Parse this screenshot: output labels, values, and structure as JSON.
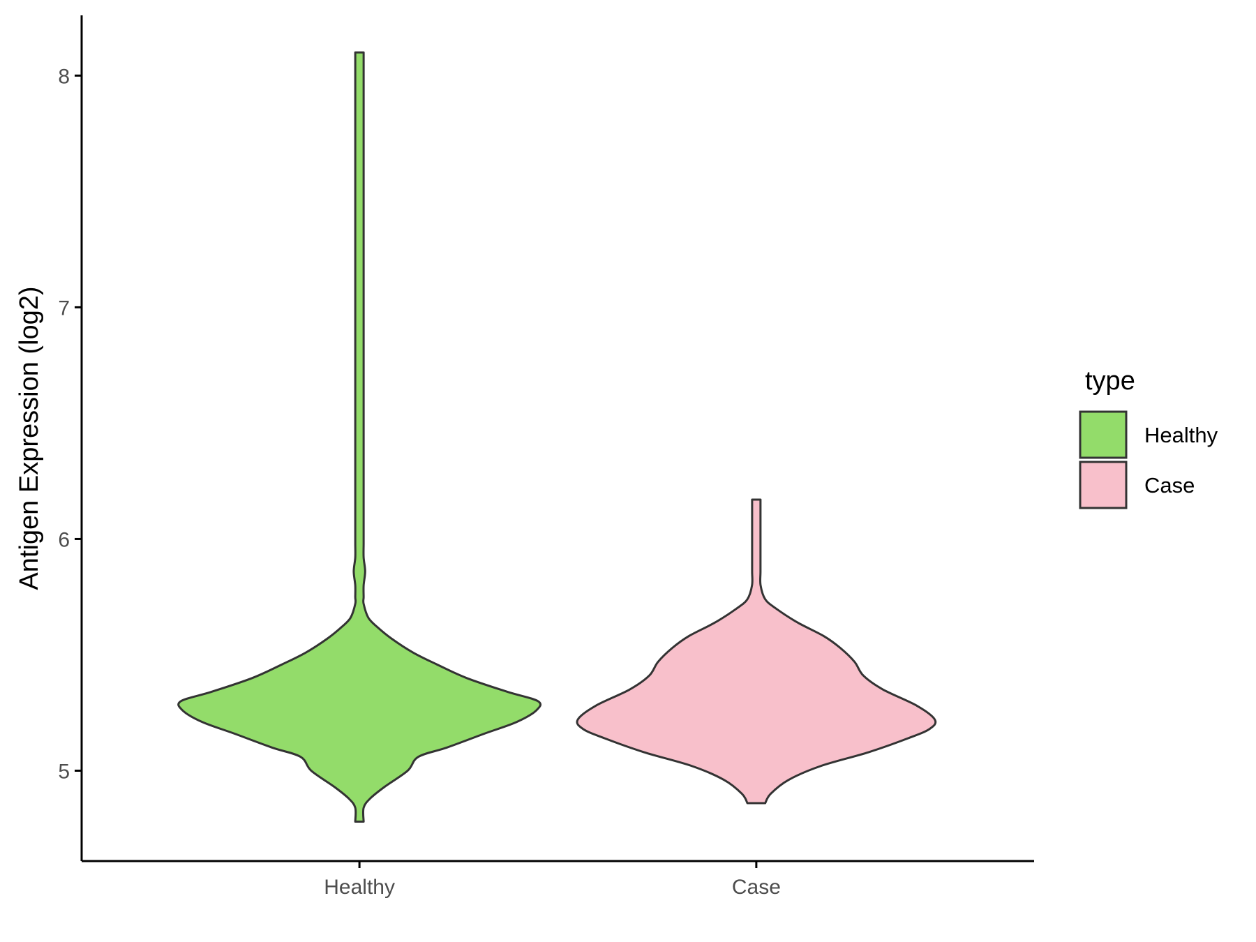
{
  "chart_data": {
    "type": "violin",
    "title": "",
    "xlabel": "",
    "ylabel": "Antigen Expression (log2)",
    "ylim": [
      4.61,
      8.26
    ],
    "yticks": [
      5,
      6,
      7,
      8
    ],
    "categories": [
      "Healthy",
      "Case"
    ],
    "legend": {
      "title": "type",
      "position": "right",
      "entries": [
        {
          "label": "Healthy",
          "color": "#93DC6A"
        },
        {
          "label": "Case",
          "color": "#F8C0CB"
        }
      ]
    },
    "series": [
      {
        "category": "Healthy",
        "color": "#93DC6A",
        "min": 4.78,
        "max": 8.1,
        "density": [
          [
            4.78,
            0.01
          ],
          [
            4.84,
            0.02
          ],
          [
            4.88,
            0.06
          ],
          [
            4.93,
            0.14
          ],
          [
            5.0,
            0.27
          ],
          [
            5.06,
            0.33
          ],
          [
            5.1,
            0.49
          ],
          [
            5.16,
            0.7
          ],
          [
            5.21,
            0.88
          ],
          [
            5.26,
            0.99
          ],
          [
            5.3,
            1.0
          ],
          [
            5.34,
            0.83
          ],
          [
            5.4,
            0.6
          ],
          [
            5.46,
            0.43
          ],
          [
            5.51,
            0.3
          ],
          [
            5.57,
            0.18
          ],
          [
            5.62,
            0.1
          ],
          [
            5.66,
            0.05
          ],
          [
            5.72,
            0.02
          ],
          [
            5.75,
            0.008
          ],
          [
            5.8,
            0.02
          ],
          [
            5.86,
            0.032
          ],
          [
            5.92,
            0.02
          ],
          [
            5.98,
            0.008
          ],
          [
            6.05,
            0.004
          ],
          [
            6.2,
            0.006
          ],
          [
            6.3,
            0.012
          ],
          [
            6.4,
            0.004
          ],
          [
            6.6,
            0.003
          ],
          [
            7.0,
            0.003
          ],
          [
            7.4,
            0.003
          ],
          [
            7.52,
            0.006
          ],
          [
            7.6,
            0.012
          ],
          [
            7.7,
            0.005
          ],
          [
            7.95,
            0.004
          ],
          [
            8.02,
            0.008
          ],
          [
            8.1,
            0.006
          ]
        ]
      },
      {
        "category": "Case",
        "color": "#F8C0CB",
        "min": 4.86,
        "max": 6.17,
        "density": [
          [
            4.86,
            0.05
          ],
          [
            4.9,
            0.08
          ],
          [
            4.96,
            0.18
          ],
          [
            5.02,
            0.36
          ],
          [
            5.08,
            0.63
          ],
          [
            5.14,
            0.85
          ],
          [
            5.18,
            0.97
          ],
          [
            5.22,
            1.0
          ],
          [
            5.28,
            0.9
          ],
          [
            5.35,
            0.71
          ],
          [
            5.41,
            0.6
          ],
          [
            5.47,
            0.55
          ],
          [
            5.53,
            0.47
          ],
          [
            5.58,
            0.38
          ],
          [
            5.64,
            0.23
          ],
          [
            5.7,
            0.11
          ],
          [
            5.74,
            0.05
          ],
          [
            5.8,
            0.024
          ],
          [
            5.86,
            0.017
          ],
          [
            5.94,
            0.016
          ],
          [
            6.02,
            0.01
          ],
          [
            6.1,
            0.014
          ],
          [
            6.17,
            0.02
          ]
        ]
      }
    ]
  }
}
